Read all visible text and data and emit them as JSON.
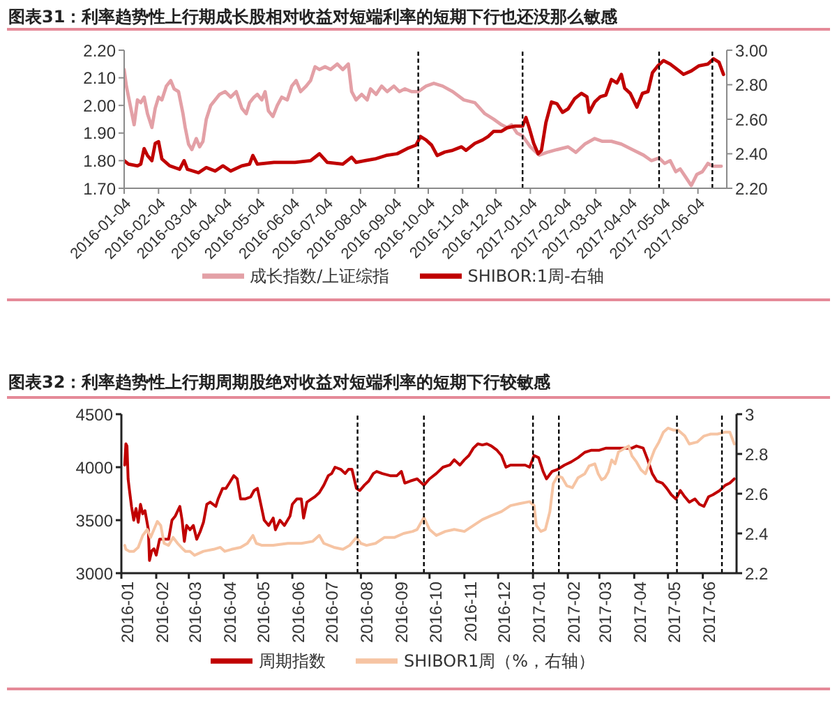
{
  "chart_data": [
    {
      "type": "line",
      "title": "图表31：利率趋势性上行期成长股相对收益对短端利率的短期下行也还没那么敏感",
      "xlim": [
        "2016-01-04",
        "2017-06-30"
      ],
      "xticks": [
        "2016-01-04",
        "2016-02-04",
        "2016-03-04",
        "2016-04-04",
        "2016-05-04",
        "2016-06-04",
        "2016-07-04",
        "2016-08-04",
        "2016-09-04",
        "2016-10-04",
        "2016-11-04",
        "2016-12-04",
        "2017-01-04",
        "2017-02-04",
        "2017-03-04",
        "2017-04-04",
        "2017-05-04",
        "2017-06-04"
      ],
      "ylim": [
        1.7,
        2.2
      ],
      "yticks": [
        {
          "value": 1.7,
          "label": "1.70"
        },
        {
          "value": 1.8,
          "label": "1.80"
        },
        {
          "value": 1.9,
          "label": "1.90"
        },
        {
          "value": 2.0,
          "label": "2.00"
        },
        {
          "value": 2.1,
          "label": "2.10"
        },
        {
          "value": 2.2,
          "label": "2.20"
        }
      ],
      "y2lim": [
        2.2,
        3.0
      ],
      "y2ticks": [
        {
          "value": 2.2,
          "label": "2.20"
        },
        {
          "value": 2.4,
          "label": "2.40"
        },
        {
          "value": 2.6,
          "label": "2.60"
        },
        {
          "value": 2.8,
          "label": "2.80"
        },
        {
          "value": 3.0,
          "label": "3.00"
        }
      ],
      "legend": "bottom",
      "marker": "none",
      "line_style": "solid",
      "ref_lines": [
        {
          "axis": "x",
          "value": "2016-09-25",
          "color": "#000000",
          "line_style": "dashed"
        },
        {
          "axis": "x",
          "value": "2016-12-28",
          "color": "#000000",
          "line_style": "dashed"
        },
        {
          "axis": "x",
          "value": "2017-04-30",
          "color": "#000000",
          "line_style": "dashed"
        },
        {
          "axis": "x",
          "value": "2017-06-17",
          "color": "#000000",
          "line_style": "dashed"
        }
      ],
      "series": [
        {
          "name": "成长指数/上证综指",
          "color": "#e3a0a6",
          "x": [
            "2016-01-04",
            "2016-01-06",
            "2016-01-10",
            "2016-01-13",
            "2016-01-16",
            "2016-01-19",
            "2016-01-22",
            "2016-01-25",
            "2016-01-29",
            "2016-02-01",
            "2016-02-04",
            "2016-02-07",
            "2016-02-11",
            "2016-02-15",
            "2016-02-18",
            "2016-02-22",
            "2016-02-26",
            "2016-02-28",
            "2016-03-02",
            "2016-03-05",
            "2016-03-09",
            "2016-03-12",
            "2016-03-15",
            "2016-03-18",
            "2016-03-22",
            "2016-03-26",
            "2016-03-30",
            "2016-04-04",
            "2016-04-09",
            "2016-04-14",
            "2016-04-19",
            "2016-04-23",
            "2016-04-26",
            "2016-04-30",
            "2016-05-03",
            "2016-05-07",
            "2016-05-10",
            "2016-05-13",
            "2016-05-17",
            "2016-05-21",
            "2016-05-25",
            "2016-05-30",
            "2016-06-03",
            "2016-06-07",
            "2016-06-11",
            "2016-06-16",
            "2016-06-20",
            "2016-06-24",
            "2016-06-28",
            "2016-07-03",
            "2016-07-08",
            "2016-07-14",
            "2016-07-19",
            "2016-07-24",
            "2016-07-27",
            "2016-07-31",
            "2016-08-05",
            "2016-08-10",
            "2016-08-13",
            "2016-08-18",
            "2016-08-23",
            "2016-08-28",
            "2016-09-03",
            "2016-09-08",
            "2016-09-13",
            "2016-09-19",
            "2016-09-25",
            "2016-10-02",
            "2016-10-09",
            "2016-10-17",
            "2016-10-26",
            "2016-11-05",
            "2016-11-15",
            "2016-11-24",
            "2016-12-02",
            "2016-12-09",
            "2016-12-14",
            "2016-12-18",
            "2016-12-23",
            "2016-12-28",
            "2017-01-04",
            "2017-01-12",
            "2017-01-19",
            "2017-01-28",
            "2017-02-07",
            "2017-02-14",
            "2017-02-22",
            "2017-03-03",
            "2017-03-10",
            "2017-03-18",
            "2017-03-27",
            "2017-04-06",
            "2017-04-16",
            "2017-04-23",
            "2017-04-30",
            "2017-05-05",
            "2017-05-10",
            "2017-05-15",
            "2017-05-19",
            "2017-05-24",
            "2017-05-29",
            "2017-06-03",
            "2017-06-08",
            "2017-06-13",
            "2017-06-17",
            "2017-06-25"
          ],
          "values": [
            2.13,
            2.07,
            1.99,
            1.93,
            2.02,
            2.01,
            2.03,
            1.97,
            1.92,
            1.99,
            2.03,
            2.02,
            2.07,
            2.09,
            2.06,
            2.05,
            1.97,
            1.92,
            1.86,
            1.84,
            1.88,
            1.85,
            1.87,
            1.95,
            2,
            2.02,
            2.04,
            2.05,
            2.03,
            2.05,
            1.99,
            1.97,
            2.01,
            2.03,
            2.04,
            2.02,
            2.05,
            1.98,
            1.96,
            2,
            2.03,
            2.02,
            2.07,
            2.09,
            2.05,
            2.07,
            2.09,
            2.14,
            2.13,
            2.14,
            2.13,
            2.15,
            2.13,
            2.15,
            2.05,
            2.02,
            2.04,
            2.02,
            2.06,
            2.04,
            2.07,
            2.05,
            2.07,
            2.05,
            2.06,
            2.05,
            2.05,
            2.07,
            2.08,
            2.07,
            2.05,
            2.02,
            2.01,
            1.97,
            1.95,
            1.93,
            1.92,
            1.93,
            1.9,
            1.89,
            1.85,
            1.82,
            1.83,
            1.84,
            1.85,
            1.83,
            1.86,
            1.88,
            1.87,
            1.87,
            1.86,
            1.84,
            1.82,
            1.8,
            1.81,
            1.79,
            1.8,
            1.76,
            1.77,
            1.74,
            1.71,
            1.75,
            1.76,
            1.79,
            1.78,
            1.78
          ]
        },
        {
          "name": "SHIBOR:1周-右轴",
          "color": "#c00000",
          "axis": "y2",
          "x": [
            "2016-01-04",
            "2016-01-08",
            "2016-01-16",
            "2016-01-19",
            "2016-01-22",
            "2016-01-25",
            "2016-01-29",
            "2016-02-01",
            "2016-02-04",
            "2016-02-07",
            "2016-02-14",
            "2016-02-23",
            "2016-02-27",
            "2016-03-01",
            "2016-03-11",
            "2016-03-18",
            "2016-03-26",
            "2016-04-02",
            "2016-04-09",
            "2016-04-19",
            "2016-04-26",
            "2016-04-29",
            "2016-05-03",
            "2016-05-18",
            "2016-06-06",
            "2016-06-20",
            "2016-06-28",
            "2016-07-05",
            "2016-07-19",
            "2016-07-27",
            "2016-07-31",
            "2016-08-08",
            "2016-08-17",
            "2016-08-27",
            "2016-09-06",
            "2016-09-15",
            "2016-09-23",
            "2016-09-27",
            "2016-10-02",
            "2016-10-07",
            "2016-10-12",
            "2016-10-19",
            "2016-10-26",
            "2016-11-03",
            "2016-11-07",
            "2016-11-15",
            "2016-11-22",
            "2016-11-27",
            "2016-12-02",
            "2016-12-09",
            "2016-12-14",
            "2016-12-21",
            "2016-12-28",
            "2016-12-31",
            "2017-01-03",
            "2017-01-07",
            "2017-01-11",
            "2017-01-14",
            "2017-01-18",
            "2017-01-23",
            "2017-01-28",
            "2017-02-02",
            "2017-02-07",
            "2017-02-13",
            "2017-02-19",
            "2017-02-24",
            "2017-02-26",
            "2017-03-03",
            "2017-03-08",
            "2017-03-13",
            "2017-03-18",
            "2017-03-23",
            "2017-03-27",
            "2017-03-30",
            "2017-04-04",
            "2017-04-10",
            "2017-04-15",
            "2017-04-20",
            "2017-04-24",
            "2017-04-29",
            "2017-05-04",
            "2017-05-10",
            "2017-05-16",
            "2017-05-22",
            "2017-05-29",
            "2017-06-05",
            "2017-06-13",
            "2017-06-18",
            "2017-06-23",
            "2017-06-27"
          ],
          "values": [
            2.36,
            2.34,
            2.33,
            2.34,
            2.43,
            2.39,
            2.36,
            2.46,
            2.47,
            2.37,
            2.33,
            2.31,
            2.36,
            2.31,
            2.29,
            2.32,
            2.3,
            2.33,
            2.3,
            2.33,
            2.34,
            2.39,
            2.34,
            2.35,
            2.35,
            2.36,
            2.4,
            2.35,
            2.34,
            2.38,
            2.35,
            2.36,
            2.37,
            2.39,
            2.4,
            2.43,
            2.45,
            2.5,
            2.48,
            2.45,
            2.39,
            2.41,
            2.42,
            2.44,
            2.42,
            2.46,
            2.48,
            2.5,
            2.53,
            2.53,
            2.55,
            2.56,
            2.56,
            2.61,
            2.55,
            2.46,
            2.4,
            2.42,
            2.58,
            2.7,
            2.69,
            2.64,
            2.66,
            2.72,
            2.75,
            2.73,
            2.64,
            2.7,
            2.73,
            2.74,
            2.83,
            2.81,
            2.86,
            2.78,
            2.75,
            2.67,
            2.75,
            2.76,
            2.87,
            2.91,
            2.94,
            2.92,
            2.89,
            2.86,
            2.88,
            2.91,
            2.92,
            2.95,
            2.93,
            2.86
          ]
        }
      ]
    },
    {
      "type": "line",
      "title": "图表32：利率趋势性上行期周期股绝对收益对短端利率的短期下行较敏感",
      "xlim": [
        "2016-01",
        "2017-07"
      ],
      "xticks": [
        "2016-01",
        "2016-02",
        "2016-03",
        "2016-04",
        "2016-05",
        "2016-06",
        "2016-07",
        "2016-08",
        "2016-09",
        "2016-10",
        "2016-11",
        "2016-12",
        "2017-01",
        "2017-02",
        "2017-03",
        "2017-04",
        "2017-05",
        "2017-06"
      ],
      "ylim": [
        3000,
        4500
      ],
      "yticks": [
        3000,
        3500,
        4000,
        4500
      ],
      "y2lim": [
        2.2,
        3
      ],
      "y2ticks": [
        2.2,
        2.4,
        2.6,
        2.8,
        3
      ],
      "legend": "bottom",
      "marker": "none",
      "line_style": "solid",
      "ref_lines": [
        {
          "axis": "x",
          "value": "2016-07-29",
          "color": "#000000",
          "line_style": "dashed"
        },
        {
          "axis": "x",
          "value": "2016-09-26",
          "color": "#000000",
          "line_style": "dashed"
        },
        {
          "axis": "x",
          "value": "2017-01-01",
          "color": "#000000",
          "line_style": "dashed"
        },
        {
          "axis": "x",
          "value": "2017-01-24",
          "color": "#000000",
          "line_style": "dashed"
        },
        {
          "axis": "x",
          "value": "2017-05-09",
          "color": "#000000",
          "line_style": "dashed"
        },
        {
          "axis": "x",
          "value": "2017-06-18",
          "color": "#000000",
          "line_style": "dashed"
        }
      ],
      "series": [
        {
          "name": "周期指数",
          "color": "#c00000",
          "x": [
            "2016-01-04",
            "2016-01-05",
            "2016-01-06",
            "2016-01-07",
            "2016-01-08",
            "2016-01-10",
            "2016-01-12",
            "2016-01-14",
            "2016-01-16",
            "2016-01-18",
            "2016-01-20",
            "2016-01-22",
            "2016-01-25",
            "2016-01-26",
            "2016-01-28",
            "2016-01-30",
            "2016-02-01",
            "2016-02-04",
            "2016-02-08",
            "2016-02-12",
            "2016-02-15",
            "2016-02-18",
            "2016-02-22",
            "2016-02-24",
            "2016-02-26",
            "2016-02-28",
            "2016-03-02",
            "2016-03-05",
            "2016-03-08",
            "2016-03-11",
            "2016-03-14",
            "2016-03-17",
            "2016-03-20",
            "2016-03-25",
            "2016-03-27",
            "2016-03-31",
            "2016-04-03",
            "2016-04-06",
            "2016-04-10",
            "2016-04-13",
            "2016-04-16",
            "2016-04-20",
            "2016-04-25",
            "2016-04-28",
            "2016-05-01",
            "2016-05-04",
            "2016-05-07",
            "2016-05-11",
            "2016-05-15",
            "2016-05-17",
            "2016-05-21",
            "2016-05-25",
            "2016-05-30",
            "2016-06-01",
            "2016-06-05",
            "2016-06-09",
            "2016-06-11",
            "2016-06-14",
            "2016-06-18",
            "2016-06-21",
            "2016-06-25",
            "2016-06-29",
            "2016-07-03",
            "2016-07-06",
            "2016-07-09",
            "2016-07-14",
            "2016-07-18",
            "2016-07-21",
            "2016-07-24",
            "2016-07-28",
            "2016-07-31",
            "2016-08-04",
            "2016-08-08",
            "2016-08-12",
            "2016-08-15",
            "2016-08-20",
            "2016-08-27",
            "2016-09-02",
            "2016-09-06",
            "2016-09-09",
            "2016-09-14",
            "2016-09-20",
            "2016-09-26",
            "2016-10-01",
            "2016-10-07",
            "2016-10-13",
            "2016-10-19",
            "2016-10-23",
            "2016-10-28",
            "2016-11-01",
            "2016-11-05",
            "2016-11-09",
            "2016-11-13",
            "2016-11-17",
            "2016-11-21",
            "2016-11-25",
            "2016-11-30",
            "2016-12-04",
            "2016-12-08",
            "2016-12-12",
            "2016-12-18",
            "2016-12-25",
            "2016-12-29",
            "2017-01-02",
            "2017-01-06",
            "2017-01-10",
            "2017-01-13",
            "2017-01-18",
            "2017-01-23",
            "2017-01-29",
            "2017-02-04",
            "2017-02-10",
            "2017-02-16",
            "2017-02-22",
            "2017-03-01",
            "2017-03-07",
            "2017-03-13",
            "2017-03-21",
            "2017-03-30",
            "2017-04-03",
            "2017-04-09",
            "2017-04-13",
            "2017-04-17",
            "2017-04-21",
            "2017-04-26",
            "2017-04-30",
            "2017-05-04",
            "2017-05-08",
            "2017-05-12",
            "2017-05-16",
            "2017-05-20",
            "2017-05-25",
            "2017-05-29",
            "2017-06-02",
            "2017-06-06",
            "2017-06-10",
            "2017-06-16",
            "2017-06-21",
            "2017-06-25",
            "2017-06-29"
          ],
          "values": [
            4020,
            4220,
            4200,
            3890,
            3800,
            3630,
            3500,
            3610,
            3480,
            3650,
            3560,
            3590,
            3410,
            3120,
            3210,
            3230,
            3170,
            3320,
            3320,
            3320,
            3500,
            3540,
            3630,
            3500,
            3300,
            3450,
            3410,
            3450,
            3320,
            3390,
            3480,
            3650,
            3670,
            3630,
            3700,
            3800,
            3800,
            3850,
            3920,
            3890,
            3700,
            3700,
            3720,
            3780,
            3800,
            3650,
            3500,
            3450,
            3520,
            3410,
            3500,
            3450,
            3540,
            3650,
            3700,
            3700,
            3520,
            3670,
            3700,
            3720,
            3760,
            3830,
            3920,
            3940,
            4000,
            3980,
            3940,
            3980,
            3980,
            3800,
            3780,
            3830,
            3870,
            3940,
            3960,
            3940,
            3920,
            3920,
            3960,
            3850,
            3870,
            3890,
            3830,
            3890,
            3940,
            4000,
            4020,
            4070,
            4020,
            4070,
            4110,
            4180,
            4220,
            4210,
            4220,
            4200,
            4160,
            4110,
            4000,
            4020,
            4020,
            4020,
            4000,
            4110,
            4090,
            3960,
            3890,
            3960,
            3980,
            4020,
            4050,
            4090,
            4140,
            4160,
            4160,
            4180,
            4180,
            4180,
            4180,
            4200,
            4180,
            4070,
            3940,
            3870,
            3850,
            3800,
            3740,
            3700,
            3780,
            3720,
            3670,
            3700,
            3650,
            3630,
            3720,
            3740,
            3780,
            3830,
            3850,
            3890
          ]
        },
        {
          "name": "SHIBOR1周（%，右轴）",
          "color": "#f6c4a3",
          "axis": "y2",
          "x": [
            "2016-01-04",
            "2016-01-05",
            "2016-01-08",
            "2016-01-12",
            "2016-01-16",
            "2016-01-20",
            "2016-01-24",
            "2016-01-27",
            "2016-01-30",
            "2016-02-02",
            "2016-02-05",
            "2016-02-08",
            "2016-02-12",
            "2016-02-16",
            "2016-02-20",
            "2016-02-25",
            "2016-02-27",
            "2016-03-02",
            "2016-03-06",
            "2016-03-14",
            "2016-03-23",
            "2016-03-29",
            "2016-04-02",
            "2016-04-08",
            "2016-04-16",
            "2016-04-22",
            "2016-04-27",
            "2016-04-30",
            "2016-05-05",
            "2016-05-15",
            "2016-05-28",
            "2016-06-09",
            "2016-06-19",
            "2016-06-25",
            "2016-06-29",
            "2016-07-08",
            "2016-07-16",
            "2016-07-22",
            "2016-07-28",
            "2016-08-01",
            "2016-08-06",
            "2016-08-14",
            "2016-08-22",
            "2016-08-31",
            "2016-09-08",
            "2016-09-16",
            "2016-09-20",
            "2016-09-26",
            "2016-10-01",
            "2016-10-07",
            "2016-10-15",
            "2016-10-23",
            "2016-11-01",
            "2016-11-09",
            "2016-11-17",
            "2016-11-25",
            "2016-12-04",
            "2016-12-12",
            "2016-12-20",
            "2016-12-29",
            "2017-01-02",
            "2017-01-04",
            "2017-01-08",
            "2017-01-12",
            "2017-01-16",
            "2017-01-19",
            "2017-01-23",
            "2017-01-27",
            "2017-01-31",
            "2017-02-05",
            "2017-02-10",
            "2017-02-16",
            "2017-02-20",
            "2017-02-25",
            "2017-02-28",
            "2017-03-03",
            "2017-03-06",
            "2017-03-09",
            "2017-03-12",
            "2017-03-15",
            "2017-03-18",
            "2017-03-24",
            "2017-03-27",
            "2017-03-30",
            "2017-04-03",
            "2017-04-07",
            "2017-04-11",
            "2017-04-15",
            "2017-04-19",
            "2017-04-23",
            "2017-04-27",
            "2017-05-01",
            "2017-05-06",
            "2017-05-10",
            "2017-05-16",
            "2017-05-20",
            "2017-05-27",
            "2017-06-02",
            "2017-06-08",
            "2017-06-14",
            "2017-06-21",
            "2017-06-25",
            "2017-06-29"
          ],
          "values": [
            2.34,
            2.32,
            2.31,
            2.31,
            2.33,
            2.39,
            2.42,
            2.38,
            2.42,
            2.46,
            2.44,
            2.35,
            2.34,
            2.38,
            2.35,
            2.32,
            2.31,
            2.31,
            2.29,
            2.31,
            2.32,
            2.33,
            2.31,
            2.32,
            2.33,
            2.35,
            2.39,
            2.35,
            2.34,
            2.34,
            2.35,
            2.35,
            2.36,
            2.39,
            2.35,
            2.33,
            2.32,
            2.34,
            2.38,
            2.35,
            2.34,
            2.35,
            2.38,
            2.38,
            2.4,
            2.41,
            2.42,
            2.48,
            2.42,
            2.39,
            2.41,
            2.42,
            2.41,
            2.44,
            2.47,
            2.49,
            2.51,
            2.54,
            2.55,
            2.56,
            2.54,
            2.44,
            2.41,
            2.42,
            2.51,
            2.65,
            2.69,
            2.68,
            2.64,
            2.63,
            2.68,
            2.7,
            2.74,
            2.75,
            2.7,
            2.67,
            2.68,
            2.71,
            2.77,
            2.75,
            2.81,
            2.83,
            2.84,
            2.79,
            2.76,
            2.72,
            2.7,
            2.76,
            2.82,
            2.86,
            2.91,
            2.93,
            2.92,
            2.92,
            2.89,
            2.85,
            2.86,
            2.89,
            2.9,
            2.9,
            2.91,
            2.91,
            2.85
          ]
        }
      ]
    }
  ]
}
